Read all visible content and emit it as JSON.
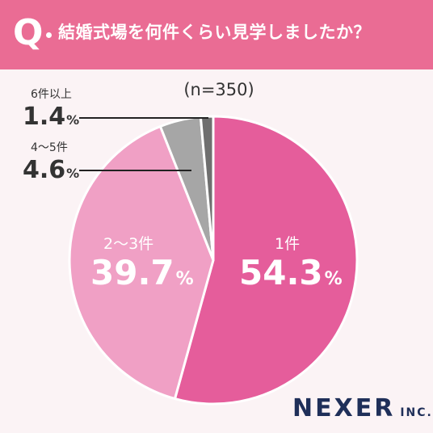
{
  "header": {
    "q_mark": "Q",
    "question": "結婚式場を何件くらい見学しましたか？"
  },
  "sample_size": "(n=350)",
  "colors": {
    "header": "#ea6c94",
    "slice_1": "#e55d9b",
    "slice_2": "#f0a0c5",
    "slice_3": "#a6a6a6",
    "slice_4": "#6f6f6f"
  },
  "labels": {
    "s1_name": "1件",
    "s1_value": "54.3",
    "s1_unit": "%",
    "s2_name": "2～3件",
    "s2_value": "39.7",
    "s2_unit": "%",
    "s3_name": "4～5件",
    "s3_value": "4.6",
    "s3_unit": "%",
    "s4_name": "6件以上",
    "s4_value": "1.4",
    "s4_unit": "%"
  },
  "chart_data": {
    "type": "pie",
    "categories": [
      "1件",
      "2～3件",
      "4～5件",
      "6件以上"
    ],
    "values": [
      54.3,
      39.7,
      4.6,
      1.4
    ],
    "unit": "%",
    "start": "12 o'clock",
    "direction": "clockwise",
    "title": "結婚式場を何件くらい見学しましたか？",
    "subtitle": "(n=350)"
  },
  "logo": {
    "name": "NEXER",
    "suffix": "INC."
  }
}
